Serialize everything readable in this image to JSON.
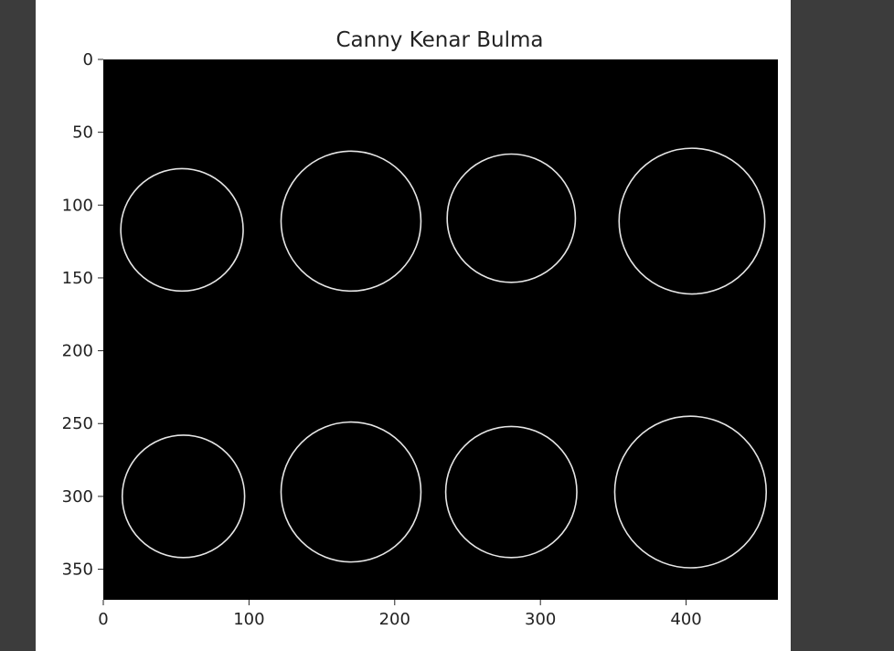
{
  "chart_data": {
    "type": "image",
    "title": "Canny Kenar Bulma",
    "xlabel": "",
    "ylabel": "",
    "xlim": [
      0,
      463
    ],
    "ylim": [
      371,
      0
    ],
    "x_ticks": [
      0,
      100,
      200,
      300,
      400
    ],
    "y_ticks": [
      0,
      50,
      100,
      150,
      200,
      250,
      300,
      350
    ],
    "grid": false,
    "background_color": "#000000",
    "edge_color": "#ffffff",
    "edge_objects": [
      {
        "label": "circle-1",
        "cx": 54,
        "cy": 117,
        "r": 42
      },
      {
        "label": "circle-2",
        "cx": 170,
        "cy": 111,
        "r": 48
      },
      {
        "label": "circle-3",
        "cx": 280,
        "cy": 109,
        "r": 44
      },
      {
        "label": "circle-4",
        "cx": 404,
        "cy": 111,
        "r": 50
      },
      {
        "label": "circle-5",
        "cx": 55,
        "cy": 300,
        "r": 42
      },
      {
        "label": "circle-6",
        "cx": 170,
        "cy": 297,
        "r": 48
      },
      {
        "label": "circle-7",
        "cx": 280,
        "cy": 297,
        "r": 45
      },
      {
        "label": "circle-8",
        "cx": 403,
        "cy": 297,
        "r": 52
      }
    ]
  }
}
